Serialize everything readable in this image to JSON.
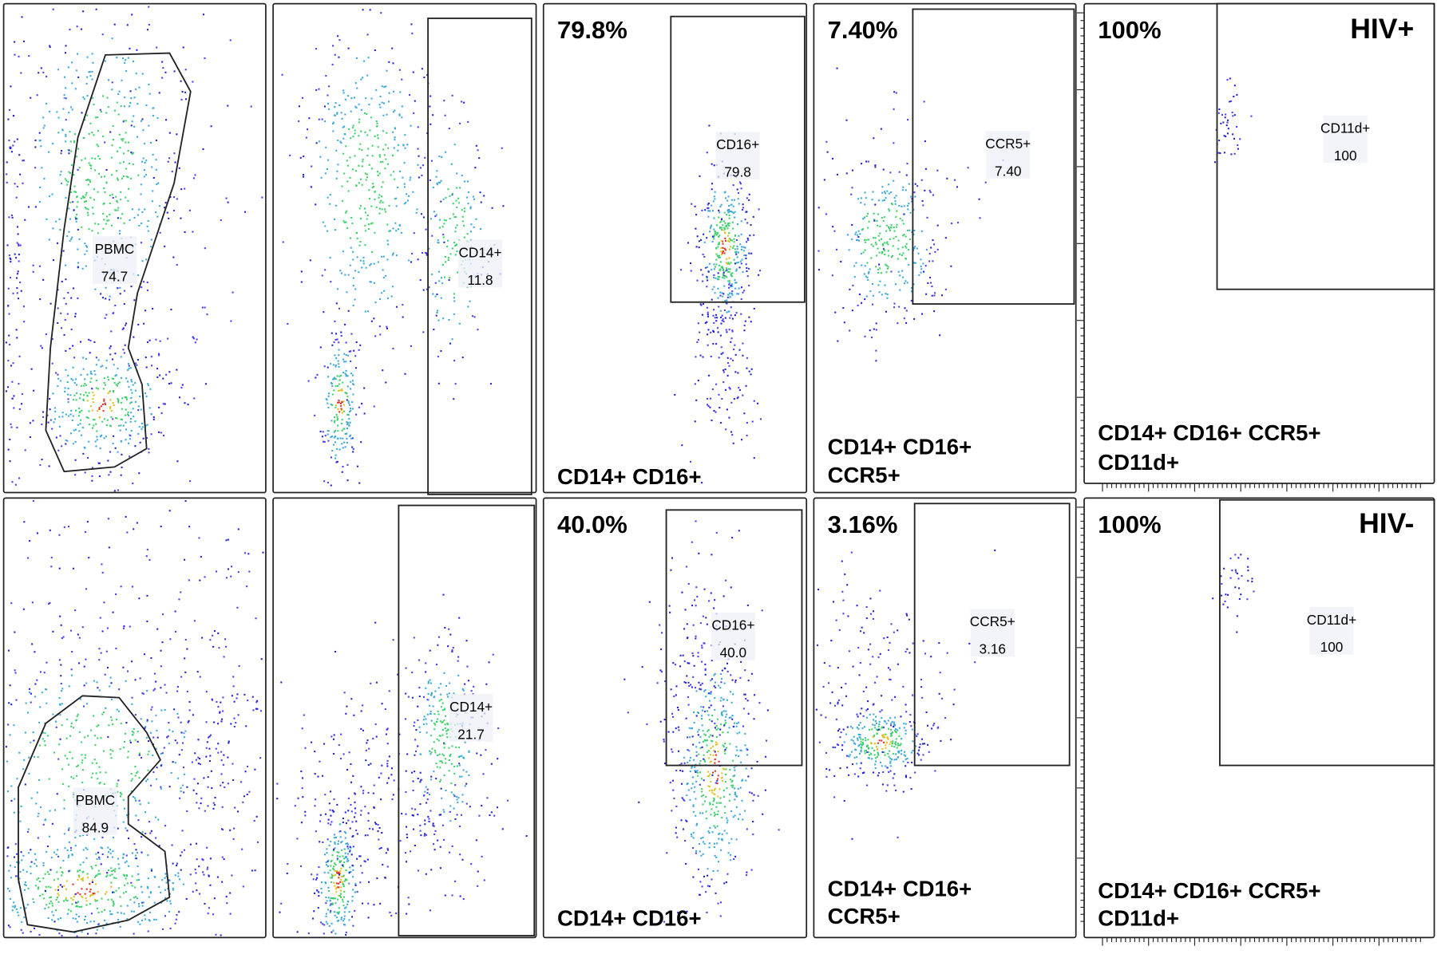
{
  "rows": [
    {
      "panels": [
        {
          "gate": {
            "label": "PBMC",
            "value": "74.7"
          }
        },
        {
          "gate": {
            "label": "CD14+",
            "value": "11.8"
          }
        },
        {
          "percent": "79.8%",
          "gate": {
            "label": "CD16+",
            "value": "79.8"
          },
          "caption": [
            "CD14+ CD16+"
          ]
        },
        {
          "percent": "7.40%",
          "gate": {
            "label": "CCR5+",
            "value": "7.40"
          },
          "caption": [
            "CD14+ CD16+",
            "CCR5+"
          ]
        },
        {
          "percent": "100%",
          "group": "HIV+",
          "gate": {
            "label": "CD11d+",
            "value": "100"
          },
          "caption": [
            "CD14+ CD16+ CCR5+",
            "CD11d+"
          ]
        }
      ]
    },
    {
      "panels": [
        {
          "gate": {
            "label": "PBMC",
            "value": "84.9"
          }
        },
        {
          "gate": {
            "label": "CD14+",
            "value": "21.7"
          }
        },
        {
          "percent": "40.0%",
          "gate": {
            "label": "CD16+",
            "value": "40.0"
          },
          "caption": [
            "CD14+ CD16+"
          ]
        },
        {
          "percent": "3.16%",
          "gate": {
            "label": "CCR5+",
            "value": "3.16"
          },
          "caption": [
            "CD14+ CD16+",
            "CCR5+"
          ]
        },
        {
          "percent": "100%",
          "group": "HIV-",
          "gate": {
            "label": "CD11d+",
            "value": "100"
          },
          "caption": [
            "CD14+ CD16+ CCR5+",
            "CD11d+"
          ]
        }
      ]
    }
  ]
}
